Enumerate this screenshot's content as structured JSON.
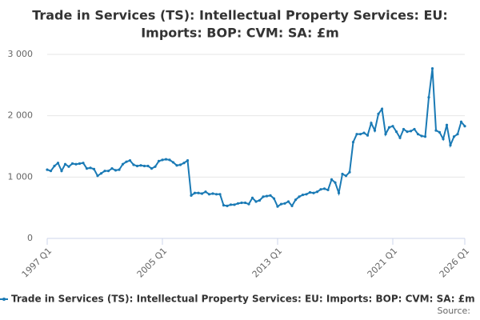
{
  "chart_data": {
    "type": "line",
    "title": [
      "Trade in Services (TS): Intellectual Property Services: EU:",
      "Imports: BOP: CVM: SA: £m"
    ],
    "categories": [
      "1997 Q1",
      null,
      null,
      null,
      null,
      null,
      null,
      null,
      null,
      null,
      null,
      null,
      null,
      null,
      null,
      null,
      null,
      null,
      null,
      null,
      null,
      null,
      null,
      null,
      null,
      null,
      null,
      null,
      null,
      null,
      null,
      null,
      "2005 Q1",
      null,
      null,
      null,
      null,
      null,
      null,
      null,
      null,
      null,
      null,
      null,
      null,
      null,
      null,
      null,
      null,
      null,
      null,
      null,
      null,
      null,
      null,
      null,
      null,
      null,
      null,
      null,
      null,
      null,
      null,
      null,
      "2013 Q1",
      null,
      null,
      null,
      null,
      null,
      null,
      null,
      null,
      null,
      null,
      null,
      null,
      null,
      null,
      null,
      null,
      null,
      null,
      null,
      null,
      null,
      null,
      null,
      null,
      null,
      null,
      null,
      null,
      null,
      null,
      null,
      "2021 Q1",
      null,
      null,
      null,
      null,
      null,
      null,
      null,
      null,
      null,
      null,
      null,
      null,
      null,
      null,
      null,
      null,
      null,
      null,
      null,
      "2026 Q1"
    ],
    "series": [
      {
        "name": "Trade in Services (TS): Intellectual Property Services: EU: Imports: BOP: CVM: SA: £m",
        "color": "#1a7ab5",
        "values": [
          1120,
          1100,
          1180,
          1230,
          1100,
          1210,
          1170,
          1220,
          1210,
          1220,
          1230,
          1140,
          1150,
          1130,
          1020,
          1060,
          1100,
          1100,
          1140,
          1110,
          1120,
          1210,
          1250,
          1270,
          1200,
          1180,
          1190,
          1180,
          1180,
          1140,
          1170,
          1260,
          1280,
          1290,
          1280,
          1240,
          1190,
          1200,
          1230,
          1270,
          700,
          740,
          740,
          730,
          760,
          720,
          730,
          720,
          720,
          540,
          530,
          550,
          550,
          570,
          580,
          580,
          560,
          660,
          600,
          620,
          680,
          690,
          700,
          650,
          520,
          560,
          570,
          600,
          530,
          630,
          680,
          710,
          720,
          750,
          740,
          760,
          800,
          810,
          790,
          960,
          910,
          740,
          1050,
          1020,
          1080,
          1570,
          1700,
          1700,
          1720,
          1680,
          1880,
          1760,
          2030,
          2110,
          1700,
          1810,
          1830,
          1740,
          1640,
          1780,
          1740,
          1750,
          1780,
          1700,
          1670,
          1660,
          2300,
          2770,
          1760,
          1730,
          1620,
          1850,
          1520,
          1660,
          1700,
          1900,
          1830
        ]
      }
    ],
    "ylim": [
      0,
      3000
    ],
    "yticks": [
      0,
      {
        "value": 1000,
        "label": "1 000"
      },
      {
        "value": 2000,
        "label": "2 000"
      },
      {
        "value": 3000,
        "label": "3 000"
      }
    ],
    "grid": true,
    "source": "Source:"
  }
}
